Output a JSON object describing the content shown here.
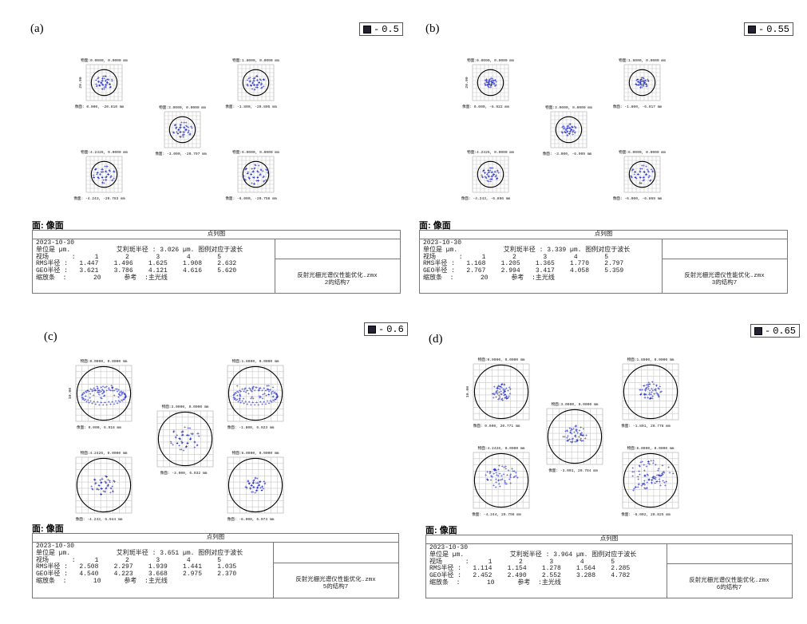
{
  "chart_data": [
    {
      "type": "scatter",
      "panel_label": "(a)",
      "legend_value": "0.5",
      "scale_label": "20.00",
      "fields": [
        {
          "object": "物面:0.0000, 0.0000 mm",
          "image": "像面: 0.000, -20.810 mm"
        },
        {
          "object": "物面:1.8000, 0.0000 mm",
          "image": "像面: -1.800, -20.805 mm"
        },
        {
          "object": "物面:3.0000, 0.0000 mm",
          "image": "像面: -3.000, -20.797 mm"
        },
        {
          "object": "物面:4.2426, 0.0000 mm",
          "image": "像面: -4.243, -20.783 mm"
        },
        {
          "object": "物面:6.0000, 0.0000 mm",
          "image": "像面: -6.000, -20.756 mm"
        }
      ],
      "report": {
        "face": "面: 像面",
        "title": "点列图",
        "date": "2023-10-30",
        "units": "单位是 µm.",
        "airy": "艾利斑半径 : 3.026 µm. 图例对应于波长",
        "field_label": "视场",
        "field_numbers": [
          "1",
          "2",
          "3",
          "4",
          "5"
        ],
        "rms_label": "RMS半径 :",
        "rms": [
          "1.447",
          "1.496",
          "1.625",
          "1.908",
          "2.632"
        ],
        "geo_label": "GEO半径 :",
        "geo": [
          "3.621",
          "3.786",
          "4.121",
          "4.616",
          "5.620"
        ],
        "scale_bar_label": "缩放条",
        "scale_bar": "20",
        "reference_label": "参考",
        "reference": ":主光线",
        "file": "反射光栅光谱仪性能优化.zmx",
        "config": "2的结构7"
      }
    },
    {
      "type": "scatter",
      "panel_label": "(b)",
      "legend_value": "0.55",
      "scale_label": "20.00",
      "fields": [
        {
          "object": "物面:0.0000, 0.0000 mm",
          "image": "像面: 0.000, -6.922 mm"
        },
        {
          "object": "物面:1.8000, 0.0000 mm",
          "image": "像面: -1.800, -6.917 mm"
        },
        {
          "object": "物面:3.0000, 0.0000 mm",
          "image": "像面: -3.000, -6.909 mm"
        },
        {
          "object": "物面:4.2426, 0.0000 mm",
          "image": "像面: -4.243, -6.896 mm"
        },
        {
          "object": "物面:6.0000, 0.0000 mm",
          "image": "像面: -6.000, -6.869 mm"
        }
      ],
      "report": {
        "face": "面: 像面",
        "title": "点列图",
        "date": "2023-10-30",
        "units": "单位是 µm.",
        "airy": "艾利斑半径 : 3.339 µm. 图例对应于波长",
        "field_label": "视场",
        "field_numbers": [
          "1",
          "2",
          "3",
          "4",
          "5"
        ],
        "rms_label": "RMS半径 :",
        "rms": [
          "1.168",
          "1.205",
          "1.365",
          "1.770",
          "2.797"
        ],
        "geo_label": "GEO半径 :",
        "geo": [
          "2.767",
          "2.994",
          "3.417",
          "4.058",
          "5.359"
        ],
        "scale_bar_label": "缩放条",
        "scale_bar": "20",
        "reference_label": "参考",
        "reference": ":主光线",
        "file": "反射光栅光谱仪性能优化.zmx",
        "config": "3的结构7"
      }
    },
    {
      "type": "scatter",
      "panel_label": "(c)",
      "legend_value": "0.6",
      "scale_label": "10.00",
      "fields": [
        {
          "object": "物面:0.0000, 0.0000 mm",
          "image": "像面: 0.000, 6.918 mm"
        },
        {
          "object": "物面:1.8000, 0.0000 mm",
          "image": "像面: -1.800, 6.923 mm"
        },
        {
          "object": "物面:3.0000, 0.0000 mm",
          "image": "像面: -3.000, 6.932 mm"
        },
        {
          "object": "物面:4.2426, 0.0000 mm",
          "image": "像面: -4.243, 6.944 mm"
        },
        {
          "object": "物面:6.0000, 0.0000 mm",
          "image": "像面: -6.000, 6.973 mm"
        }
      ],
      "report": {
        "face": "面: 像面",
        "title": "点列图",
        "date": "2023-10-30",
        "units": "单位是 µm.",
        "airy": "艾利斑半径 : 3.651 µm. 图例对应于波长",
        "field_label": "视场",
        "field_numbers": [
          "1",
          "2",
          "3",
          "4",
          "5"
        ],
        "rms_label": "RMS半径 :",
        "rms": [
          "2.508",
          "2.297",
          "1.939",
          "1.441",
          "1.035"
        ],
        "geo_label": "GEO半径 :",
        "geo": [
          "4.540",
          "4.223",
          "3.668",
          "2.975",
          "2.370"
        ],
        "scale_bar_label": "缩放条",
        "scale_bar": "10",
        "reference_label": "参考",
        "reference": ":主光线",
        "file": "反射光栅光谱仪性能优化.zmx",
        "config": "5的结构7"
      }
    },
    {
      "type": "scatter",
      "panel_label": "(d)",
      "legend_value": "0.65",
      "scale_label": "10.00",
      "fields": [
        {
          "object": "物面:0.0000, 0.0000 mm",
          "image": "像面: 0.000, 20.771 mm"
        },
        {
          "object": "物面:1.8000, 0.0000 mm",
          "image": "像面: -1.801, 20.778 mm"
        },
        {
          "object": "物面:3.0000, 0.0000 mm",
          "image": "像面: -3.001, 20.784 mm"
        },
        {
          "object": "物面:4.2426, 0.0000 mm",
          "image": "像面: -4.244, 20.798 mm"
        },
        {
          "object": "物面:6.0000, 0.0000 mm",
          "image": "像面: -6.002, 20.825 mm"
        }
      ],
      "report": {
        "face": "面: 像面",
        "title": "点列图",
        "date": "2023-10-30",
        "units": "单位是 µm.",
        "airy": "艾利斑半径 : 3.964 µm. 图例对应于波长",
        "field_label": "视场",
        "field_numbers": [
          "1",
          "2",
          "3",
          "4",
          "5"
        ],
        "rms_label": "RMS半径 :",
        "rms": [
          "1.114",
          "1.154",
          "1.278",
          "1.564",
          "2.285"
        ],
        "geo_label": "GEO半径 :",
        "geo": [
          "2.452",
          "2.490",
          "2.552",
          "3.288",
          "4.782"
        ],
        "scale_bar_label": "缩放条",
        "scale_bar": "10",
        "reference_label": "参考",
        "reference": ":主光线",
        "file": "反射光栅光谱仪性能优化.zmx",
        "config": "6的结构7"
      }
    }
  ],
  "colors": {
    "spots": "#2b33c8",
    "airy_circle": "#000000",
    "grid": "#c8c8c8",
    "frame": "#777777"
  }
}
